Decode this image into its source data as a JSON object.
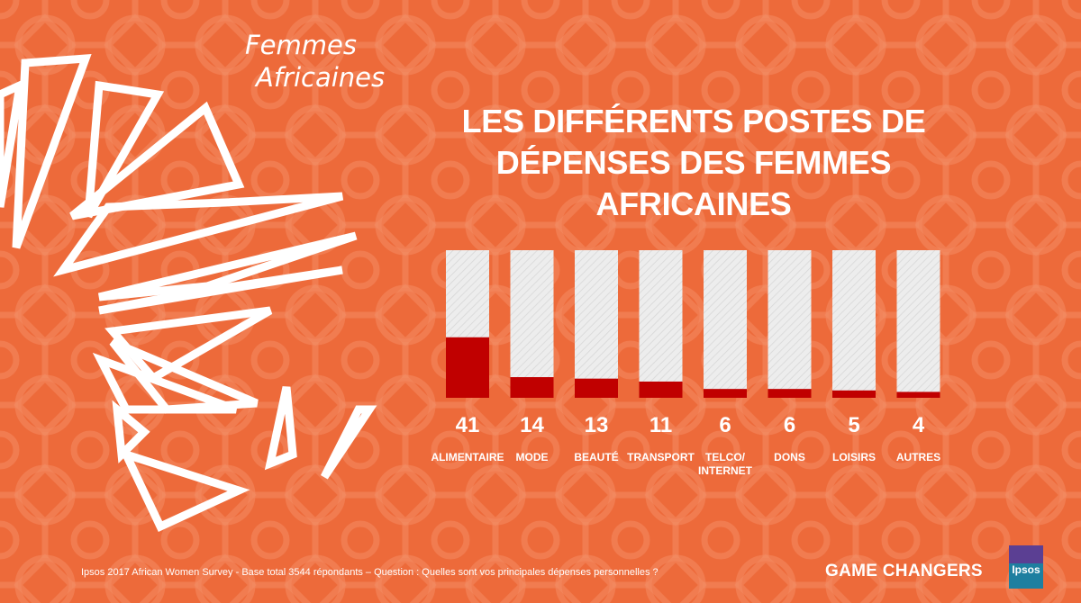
{
  "brand": {
    "line1": "Femmes",
    "line2": "Africaines"
  },
  "title": {
    "line1": "LES DIFFÉRENTS POSTES DE",
    "line2": "DÉPENSES DES FEMMES AFRICAINES"
  },
  "chart_data": {
    "type": "bar",
    "categories": [
      "ALIMENTAIRE",
      "MODE",
      "BEAUTÉ",
      "TRANSPORT",
      "TELCO/\nINTERNET",
      "DONS",
      "LOISIRS",
      "AUTRES"
    ],
    "values": [
      41,
      14,
      13,
      11,
      6,
      6,
      5,
      4
    ],
    "ylim": [
      0,
      100
    ],
    "title": "",
    "xlabel": "",
    "ylabel": "",
    "grid": false,
    "legend": "none",
    "colors": {
      "bar": "#C00000",
      "track": "#EEEEEE",
      "labels": "#FFFFFF"
    }
  },
  "footer": {
    "note": "Ipsos 2017 African Women Survey - Base total 3544 répondants – Question : Quelles sont vos principales dépenses personnelles ?",
    "tagline": "GAME CHANGERS",
    "logo_text": "Ipsos"
  },
  "colors": {
    "background": "#ED6A3A",
    "accent": "#C00000",
    "logo": "#1E7FA0"
  }
}
